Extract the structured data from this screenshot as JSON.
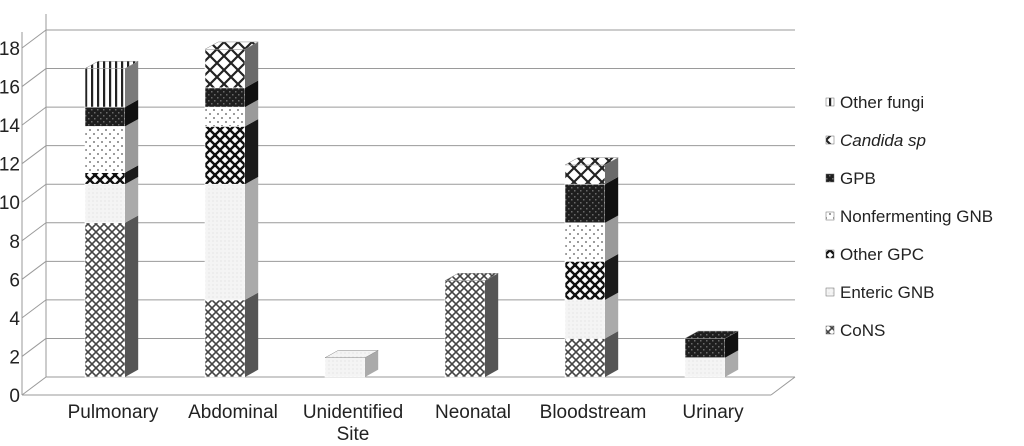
{
  "chart_data": {
    "type": "bar",
    "stacked": true,
    "three_d": true,
    "categories": [
      "Pulmonary",
      "Abdominal",
      "Unidentified Site",
      "Neonatal",
      "Bloodstream",
      "Urinary"
    ],
    "category_lines": [
      [
        "Pulmonary"
      ],
      [
        "Abdominal"
      ],
      [
        "Unidentified",
        "Site"
      ],
      [
        "Neonatal"
      ],
      [
        "Bloodstream"
      ],
      [
        "Urinary"
      ]
    ],
    "series": [
      {
        "name": "CoNS",
        "values": [
          8,
          4,
          0,
          5,
          2,
          0
        ]
      },
      {
        "name": "Enteric GNB",
        "values": [
          2,
          6,
          1,
          0,
          2,
          1
        ]
      },
      {
        "name": "Other GPC",
        "values": [
          0.6,
          3,
          0,
          0,
          2,
          0
        ]
      },
      {
        "name": "Nonfermenting GNB",
        "values": [
          2.4,
          1,
          0,
          0,
          2,
          0
        ]
      },
      {
        "name": "GPB",
        "values": [
          1,
          1,
          0,
          0,
          2,
          1
        ]
      },
      {
        "name": "Candida sp",
        "values": [
          0,
          2,
          0,
          0,
          1,
          0
        ]
      },
      {
        "name": "Other fungi",
        "values": [
          2,
          0,
          0,
          0,
          0,
          0
        ]
      }
    ],
    "yticks": [
      0,
      2,
      4,
      6,
      8,
      10,
      12,
      14,
      16,
      18
    ],
    "ylim": [
      0,
      18
    ],
    "grid": true,
    "legend_position": "right",
    "title": "",
    "xlabel": "",
    "ylabel": ""
  }
}
